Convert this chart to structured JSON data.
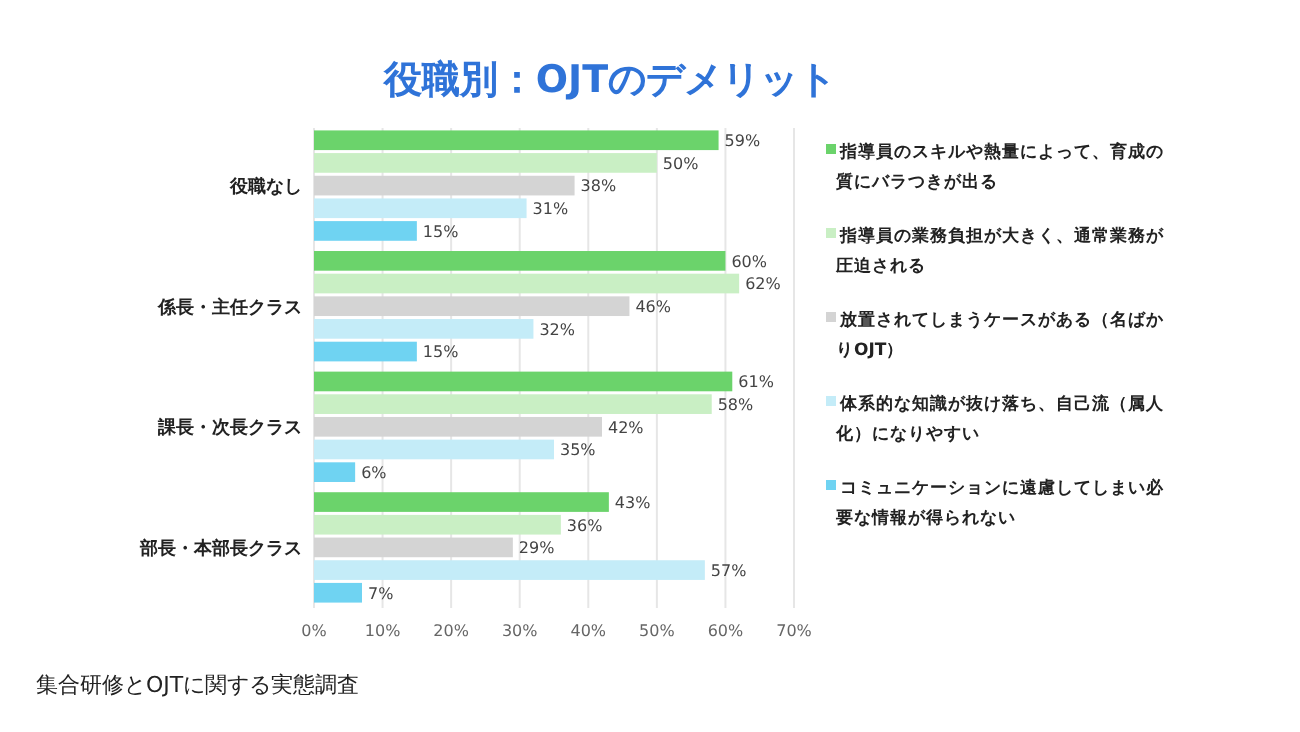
{
  "chart_data": {
    "type": "bar",
    "orientation": "horizontal",
    "title": "役職別：OJTのデメリット",
    "categories": [
      "役職なし",
      "係長・主任クラス",
      "課長・次長クラス",
      "部長・本部長クラス"
    ],
    "series": [
      {
        "name": "指導員のスキルや熱量によって、育成の質にバラつきが出る",
        "color": "#6bd36b",
        "values": [
          59,
          60,
          61,
          43
        ],
        "value_labels": [
          "59%",
          "60%",
          "61%",
          "43%"
        ]
      },
      {
        "name": "指導員の業務負担が大きく、通常業務が圧迫される",
        "color": "#c9efc4",
        "values": [
          50,
          62,
          58,
          36
        ],
        "value_labels": [
          "50%",
          "62%",
          "58%",
          "36%"
        ]
      },
      {
        "name": "放置されてしまうケースがある（名ばかりOJT）",
        "color": "#d4d4d4",
        "values": [
          38,
          46,
          42,
          29
        ],
        "value_labels": [
          "38%",
          "46%",
          "42%",
          "29%"
        ]
      },
      {
        "name": "体系的な知識が抜け落ち、自己流（属人化）になりやすい",
        "color": "#c4ecf8",
        "values": [
          31,
          32,
          35,
          57
        ],
        "value_labels": [
          "31%",
          "32%",
          "35%",
          "57%"
        ]
      },
      {
        "name": "コミュニケーションに遠慮してしまい必要な情報が得られない",
        "color": "#6fd3f2",
        "values": [
          15,
          15,
          6,
          7
        ],
        "value_labels": [
          "15%",
          "15%",
          "6%",
          "7%"
        ]
      }
    ],
    "xlim": [
      0,
      70
    ],
    "xticks": [
      {
        "value": 0,
        "label": "0%"
      },
      {
        "value": 10,
        "label": "10%"
      },
      {
        "value": 20,
        "label": "20%"
      },
      {
        "value": 30,
        "label": "30%"
      },
      {
        "value": 40,
        "label": "40%"
      },
      {
        "value": 50,
        "label": "50%"
      },
      {
        "value": 60,
        "label": "60%"
      },
      {
        "value": 70,
        "label": "70%"
      }
    ],
    "grid": "x",
    "legend": "right",
    "annotations": [
      "集合研修とOJTに関する実態調査"
    ]
  }
}
